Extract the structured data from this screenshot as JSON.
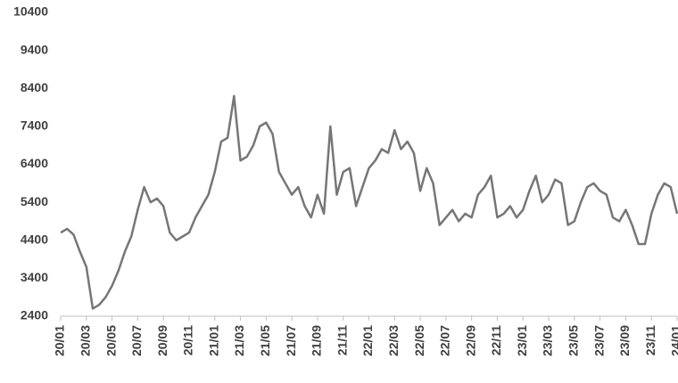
{
  "chart_data": {
    "type": "line",
    "categories": [
      "20/01",
      null,
      null,
      null,
      "20/03",
      null,
      null,
      null,
      "20/05",
      null,
      null,
      null,
      "20/07",
      null,
      null,
      null,
      "20/09",
      null,
      null,
      null,
      "20/11",
      null,
      null,
      null,
      "21/01",
      null,
      null,
      null,
      "21/03",
      null,
      null,
      null,
      "21/05",
      null,
      null,
      null,
      "21/07",
      null,
      null,
      null,
      "21/09",
      null,
      null,
      null,
      "21/11",
      null,
      null,
      null,
      "22/01",
      null,
      null,
      null,
      "22/03",
      null,
      null,
      null,
      "22/05",
      null,
      null,
      null,
      "22/07",
      null,
      null,
      null,
      "22/09",
      null,
      null,
      null,
      "22/11",
      null,
      null,
      null,
      "23/01",
      null,
      null,
      null,
      "23/03",
      null,
      null,
      null,
      "23/05",
      null,
      null,
      null,
      "23/07",
      null,
      null,
      null,
      "23/09",
      null,
      null,
      null,
      "23/11",
      null,
      null,
      null,
      "24/01"
    ],
    "series": [
      {
        "color": "#767676",
        "values": [
          4600,
          4700,
          4550,
          4100,
          3700,
          2600,
          2700,
          2900,
          3200,
          3600,
          4100,
          4500,
          5200,
          5800,
          5400,
          5500,
          5300,
          4600,
          4400,
          4500,
          4600,
          5000,
          5300,
          5600,
          6200,
          7000,
          7100,
          8200,
          6500,
          6600,
          6900,
          7400,
          7500,
          7200,
          6200,
          5900,
          5600,
          5800,
          5300,
          5000,
          5600,
          5100,
          7400,
          5600,
          6200,
          6300,
          5300,
          5800,
          6300,
          6500,
          6800,
          6700,
          7300,
          6800,
          7000,
          6700,
          5700,
          6300,
          5900,
          4800,
          5000,
          5200,
          4900,
          5100,
          5000,
          5600,
          5800,
          6100,
          5000,
          5100,
          5300,
          5000,
          5200,
          5700,
          6100,
          5400,
          5600,
          6000,
          5900,
          4800,
          4900,
          5400,
          5800,
          5900,
          5700,
          5600,
          5000,
          4900,
          5200,
          4800,
          4300,
          4300,
          5100,
          5600,
          5900,
          5800,
          5100
        ]
      }
    ],
    "ylim": [
      2400,
      10400
    ],
    "yticks": [
      2400,
      3400,
      4400,
      5400,
      6400,
      7400,
      8400,
      9400,
      10400
    ]
  }
}
